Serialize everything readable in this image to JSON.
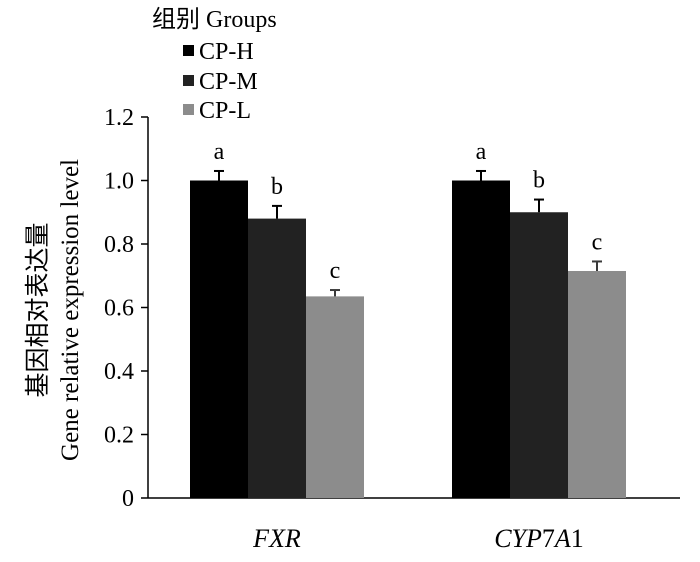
{
  "chart_data": {
    "type": "bar",
    "legend_title": "组别 Groups",
    "legend_position": "top-left",
    "ylabel_cn": "基因相对表达量",
    "ylabel_en": "Gene relative expression level",
    "categories": [
      {
        "name": "FXR",
        "parts": [
          {
            "t": "FXR",
            "i": true
          }
        ]
      },
      {
        "name": "CYP7A1",
        "parts": [
          {
            "t": "CYP",
            "i": true
          },
          {
            "t": "7",
            "i": false
          },
          {
            "t": "A",
            "i": true
          },
          {
            "t": "1",
            "i": false
          }
        ]
      }
    ],
    "series": [
      {
        "name": "CP-H",
        "color": "#000000",
        "values": [
          1.0,
          1.0
        ],
        "errors": [
          0.03,
          0.03
        ],
        "labels": [
          "a",
          "a"
        ]
      },
      {
        "name": "CP-M",
        "color": "#222222",
        "values": [
          0.88,
          0.9
        ],
        "errors": [
          0.04,
          0.04
        ],
        "labels": [
          "b",
          "b"
        ]
      },
      {
        "name": "CP-L",
        "color": "#8c8c8c",
        "values": [
          0.635,
          0.715
        ],
        "errors": [
          0.02,
          0.03
        ],
        "labels": [
          "c",
          "c"
        ]
      }
    ],
    "yticks": [
      "0",
      "0.2",
      "0.4",
      "0.6",
      "0.8",
      "1.0",
      "1.2"
    ],
    "ylim": [
      0,
      1.2
    ],
    "grid": false
  }
}
